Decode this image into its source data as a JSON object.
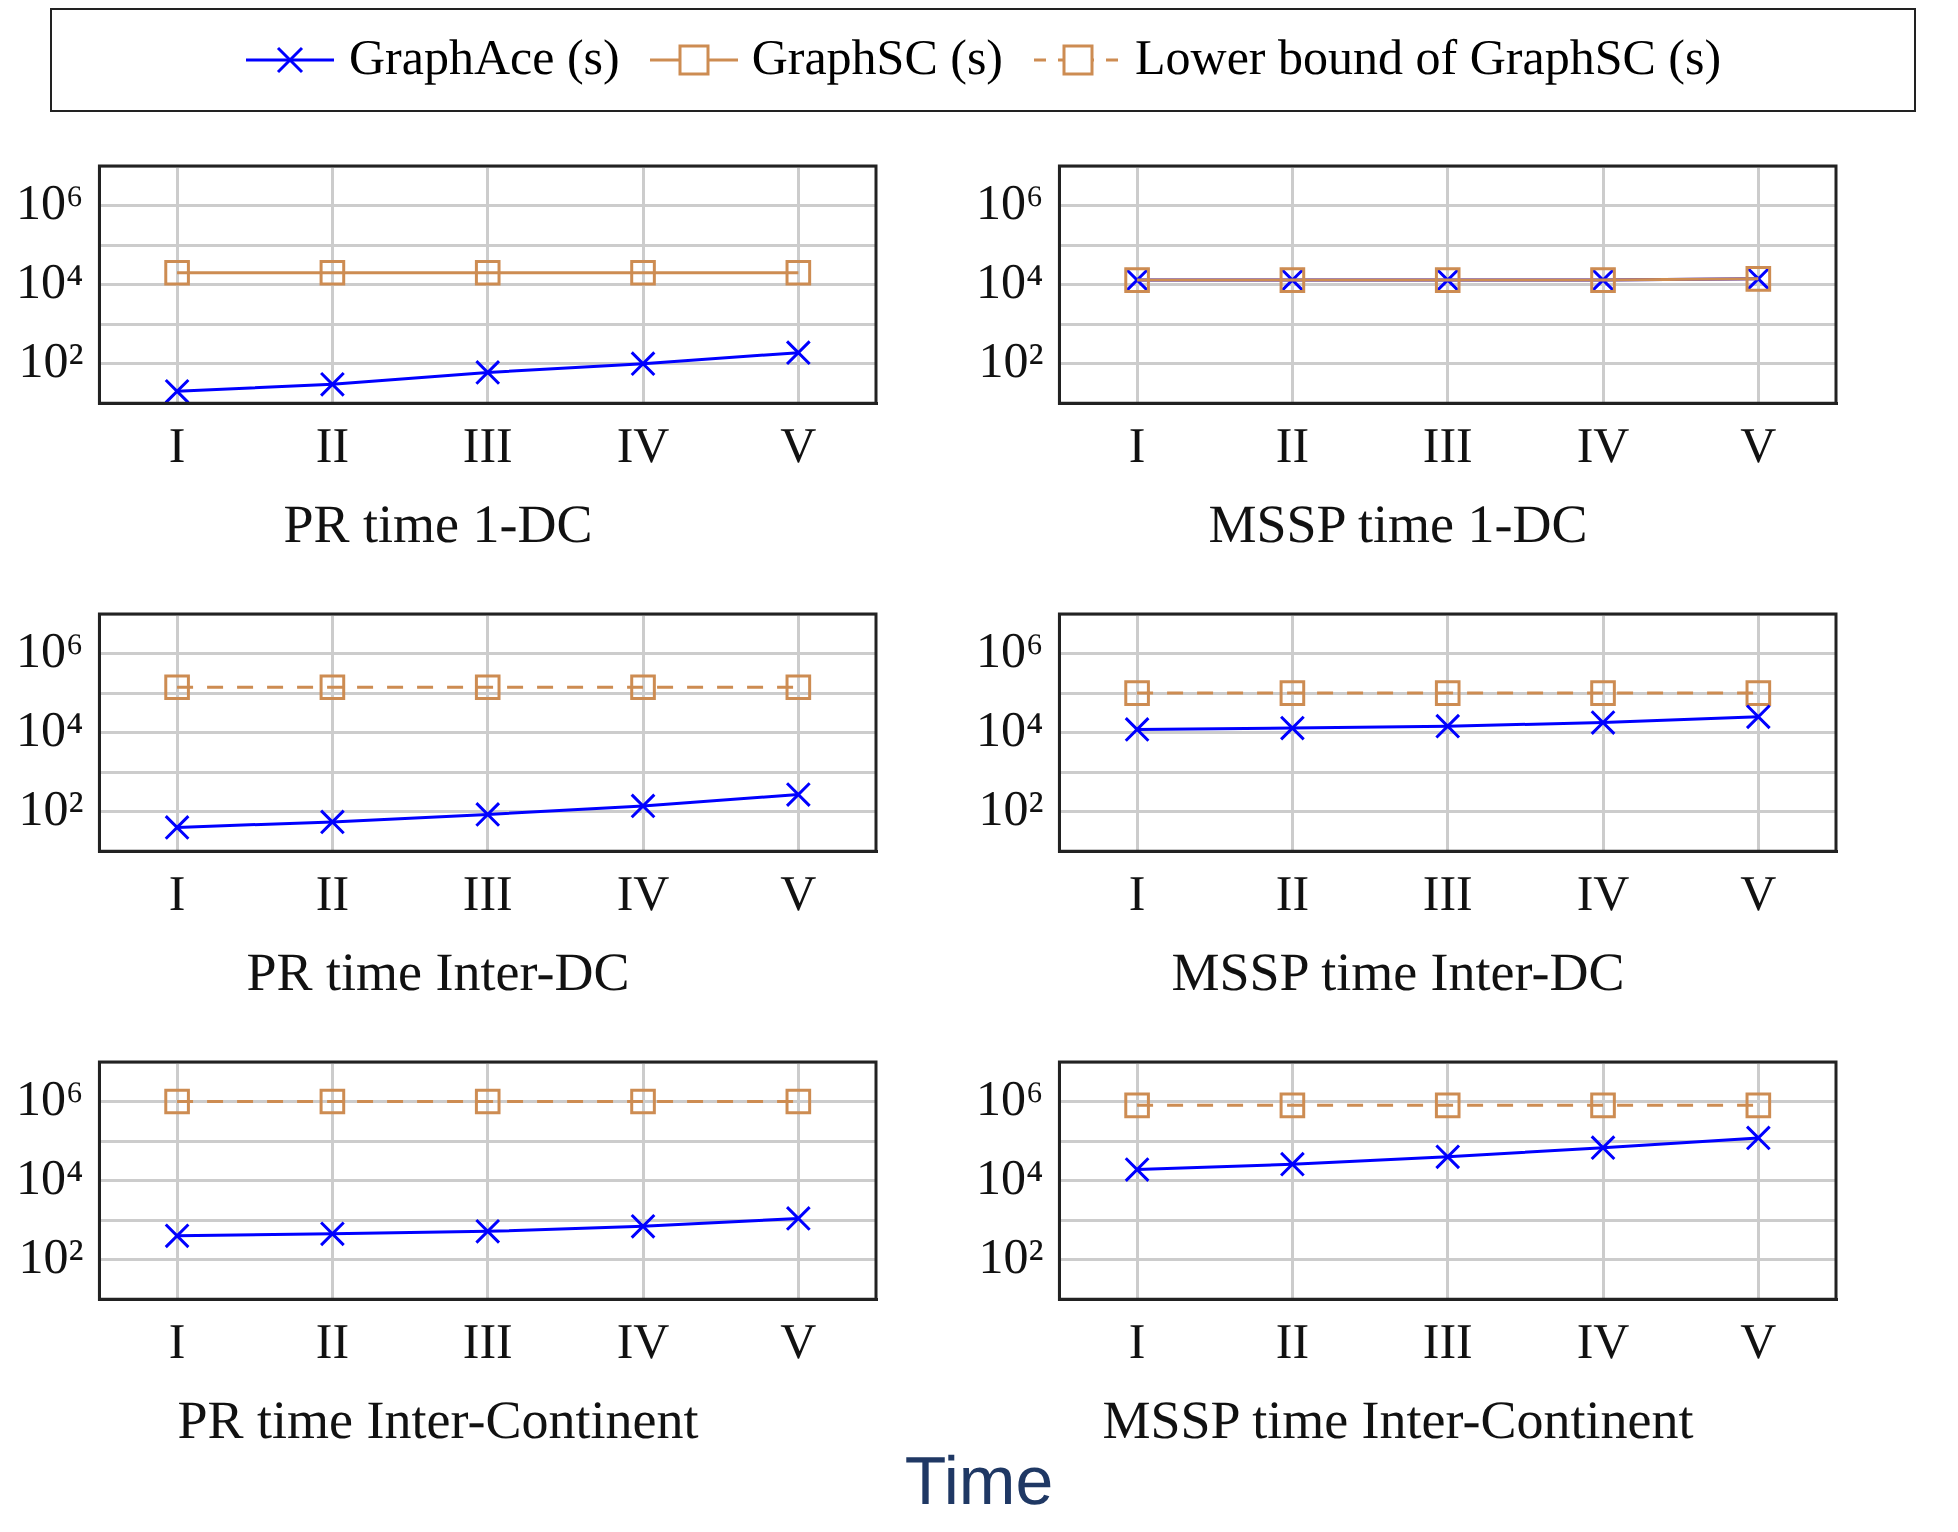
{
  "chart_data": [
    {
      "type": "line",
      "title": "PR time 1-DC",
      "categories": [
        "I",
        "II",
        "III",
        "IV",
        "V"
      ],
      "log": "y",
      "grid": true,
      "legend": "top",
      "ylim": [
        10,
        10000000
      ],
      "yticks": [
        {
          "value": 10,
          "label": null
        },
        {
          "value": 100,
          "label": "10²"
        },
        {
          "value": 1000,
          "label": null
        },
        {
          "value": 10000,
          "label": "10⁴"
        },
        {
          "value": 100000,
          "label": null
        },
        {
          "value": 1000000,
          "label": "10⁶"
        },
        {
          "value": 10000000,
          "label": null
        }
      ],
      "series": [
        {
          "name": "GraphAce (s)",
          "color": "#0000ff",
          "marker": "cross",
          "line_style": "solid",
          "values": [
            20,
            30,
            60,
            100,
            190
          ]
        },
        {
          "name": "GraphSC (s)",
          "color": "#cd8c52",
          "marker": "square",
          "line_style": "solid",
          "values": [
            20000,
            20000,
            20000,
            20000,
            20000
          ]
        },
        {
          "name": "Lower bound of GraphSC (s)",
          "color": "#cd8c52",
          "marker": "square",
          "line_style": "dashed",
          "values": [
            null,
            null,
            null,
            null,
            null
          ]
        }
      ]
    },
    {
      "type": "line",
      "title": "MSSP time 1-DC",
      "categories": [
        "I",
        "II",
        "III",
        "IV",
        "V"
      ],
      "log": "y",
      "grid": true,
      "ylim": [
        10,
        10000000
      ],
      "yticks": [
        {
          "value": 10,
          "label": null
        },
        {
          "value": 100,
          "label": "10²"
        },
        {
          "value": 1000,
          "label": null
        },
        {
          "value": 10000,
          "label": "10⁴"
        },
        {
          "value": 100000,
          "label": null
        },
        {
          "value": 1000000,
          "label": "10⁶"
        },
        {
          "value": 10000000,
          "label": null
        }
      ],
      "series": [
        {
          "color": "#cd8c52",
          "marker": "square",
          "line_style": "solid",
          "values": [
            13000,
            13000,
            13000,
            13000,
            14000
          ]
        },
        {
          "color": "#0000ff",
          "marker": "cross",
          "line_style": "solid",
          "values": [
            13000,
            13000,
            13000,
            13000,
            14000
          ]
        }
      ]
    },
    {
      "type": "line",
      "title": "PR time Inter-DC",
      "categories": [
        "I",
        "II",
        "III",
        "IV",
        "V"
      ],
      "log": "y",
      "grid": true,
      "ylim": [
        10,
        10000000
      ],
      "yticks": [
        {
          "value": 10,
          "label": null
        },
        {
          "value": 100,
          "label": "10²"
        },
        {
          "value": 1000,
          "label": null
        },
        {
          "value": 10000,
          "label": "10⁴"
        },
        {
          "value": 100000,
          "label": null
        },
        {
          "value": 1000000,
          "label": "10⁶"
        },
        {
          "value": 10000000,
          "label": null
        }
      ],
      "series": [
        {
          "color": "#0000ff",
          "marker": "cross",
          "line_style": "solid",
          "values": [
            40,
            55,
            85,
            140,
            270
          ]
        },
        {
          "color": "#cd8c52",
          "marker": "square",
          "line_style": "dashed",
          "values": [
            140000,
            140000,
            140000,
            140000,
            140000
          ]
        }
      ]
    },
    {
      "type": "line",
      "title": "MSSP time Inter-DC",
      "categories": [
        "I",
        "II",
        "III",
        "IV",
        "V"
      ],
      "log": "y",
      "grid": true,
      "ylim": [
        10,
        10000000
      ],
      "yticks": [
        {
          "value": 10,
          "label": null
        },
        {
          "value": 100,
          "label": "10²"
        },
        {
          "value": 1000,
          "label": null
        },
        {
          "value": 10000,
          "label": "10⁴"
        },
        {
          "value": 100000,
          "label": null
        },
        {
          "value": 1000000,
          "label": "10⁶"
        },
        {
          "value": 10000000,
          "label": null
        }
      ],
      "series": [
        {
          "color": "#0000ff",
          "marker": "cross",
          "line_style": "solid",
          "values": [
            12000,
            13000,
            14500,
            18000,
            25000
          ]
        },
        {
          "color": "#cd8c52",
          "marker": "square",
          "line_style": "dashed",
          "values": [
            100000,
            100000,
            100000,
            100000,
            100000
          ]
        }
      ]
    },
    {
      "type": "line",
      "title": "PR time Inter-Continent",
      "categories": [
        "I",
        "II",
        "III",
        "IV",
        "V"
      ],
      "log": "y",
      "grid": true,
      "ylim": [
        10,
        10000000
      ],
      "yticks": [
        {
          "value": 10,
          "label": null
        },
        {
          "value": 100,
          "label": "10²"
        },
        {
          "value": 1000,
          "label": null
        },
        {
          "value": 10000,
          "label": "10⁴"
        },
        {
          "value": 100000,
          "label": null
        },
        {
          "value": 1000000,
          "label": "10⁶"
        },
        {
          "value": 10000000,
          "label": null
        }
      ],
      "series": [
        {
          "color": "#0000ff",
          "marker": "cross",
          "line_style": "solid",
          "values": [
            400,
            450,
            520,
            700,
            1100
          ]
        },
        {
          "color": "#cd8c52",
          "marker": "square",
          "line_style": "dashed",
          "values": [
            1000000,
            1000000,
            1000000,
            1000000,
            1000000
          ]
        }
      ]
    },
    {
      "type": "line",
      "title": "MSSP time Inter-Continent",
      "categories": [
        "I",
        "II",
        "III",
        "IV",
        "V"
      ],
      "log": "y",
      "grid": true,
      "ylim": [
        10,
        10000000
      ],
      "yticks": [
        {
          "value": 10,
          "label": null
        },
        {
          "value": 100,
          "label": "10²"
        },
        {
          "value": 1000,
          "label": null
        },
        {
          "value": 10000,
          "label": "10⁴"
        },
        {
          "value": 100000,
          "label": null
        },
        {
          "value": 1000000,
          "label": "10⁶"
        },
        {
          "value": 10000000,
          "label": null
        }
      ],
      "annotations": [
        "Time"
      ],
      "series": [
        {
          "color": "#0000ff",
          "marker": "cross",
          "line_style": "solid",
          "values": [
            19000,
            26000,
            40000,
            68000,
            120000
          ]
        },
        {
          "color": "#cd8c52",
          "marker": "square",
          "line_style": "dashed",
          "values": [
            800000,
            800000,
            800000,
            800000,
            800000
          ]
        }
      ]
    }
  ]
}
